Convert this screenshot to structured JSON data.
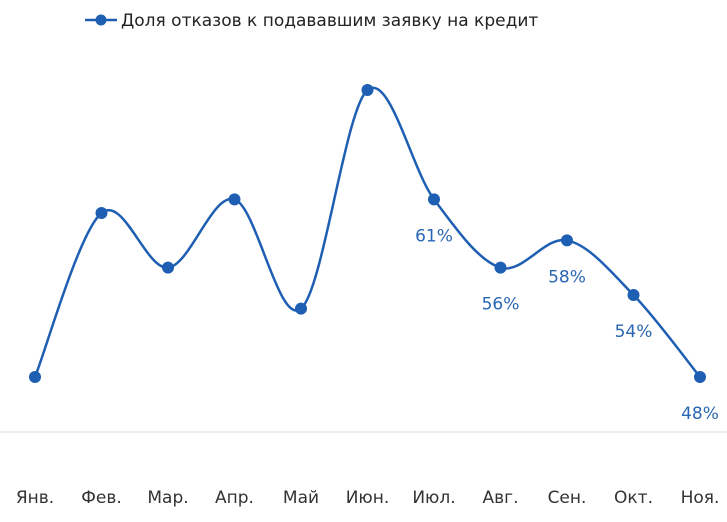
{
  "chart_data": {
    "type": "line",
    "categories": [
      "Янв.",
      "Фев.",
      "Мар.",
      "Апр.",
      "Май",
      "Июн.",
      "Июл.",
      "Авг.",
      "Сен.",
      "Окт.",
      "Ноя."
    ],
    "series": [
      {
        "name": "Доля отказов к подававшим заявку на кредит",
        "color": "#1f5fb3",
        "values": [
          48,
          60,
          56,
          61,
          53,
          69,
          61,
          56,
          58,
          54,
          48
        ],
        "value_labels": [
          null,
          null,
          null,
          null,
          null,
          null,
          "61%",
          "56%",
          "58%",
          "54%",
          "48%"
        ]
      }
    ],
    "legend": "top"
  }
}
